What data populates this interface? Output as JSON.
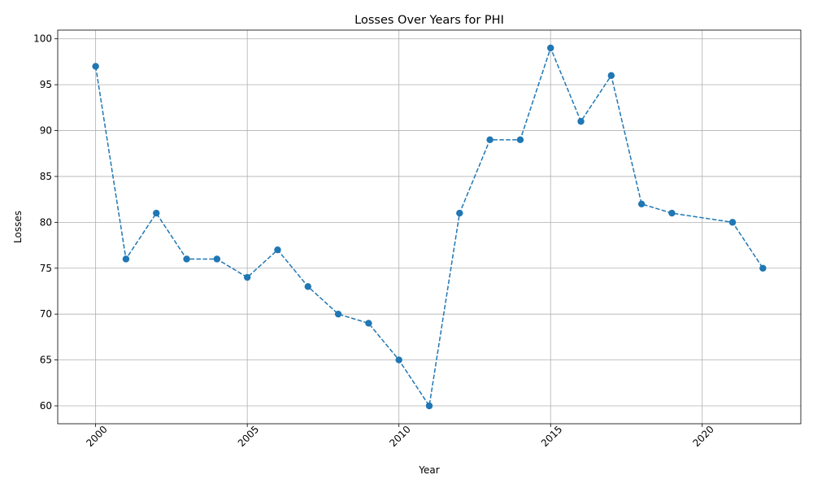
{
  "chart_data": {
    "type": "line",
    "title": "Losses Over Years for PHI",
    "xlabel": "Year",
    "ylabel": "Losses",
    "xlim": [
      1998.75,
      2023.25
    ],
    "ylim": [
      58.05,
      100.95
    ],
    "xticks": [
      2000,
      2005,
      2010,
      2015,
      2020
    ],
    "yticks": [
      60,
      65,
      70,
      75,
      80,
      85,
      90,
      95,
      100
    ],
    "grid": true,
    "line_style": "dashed",
    "marker": "circle",
    "color": "#1f77b4",
    "x": [
      2000,
      2001,
      2002,
      2003,
      2004,
      2005,
      2006,
      2007,
      2008,
      2009,
      2010,
      2011,
      2012,
      2013,
      2014,
      2015,
      2016,
      2017,
      2018,
      2019,
      2021,
      2022
    ],
    "y": [
      97,
      76,
      81,
      76,
      76,
      74,
      77,
      73,
      70,
      69,
      65,
      60,
      81,
      89,
      89,
      99,
      91,
      96,
      82,
      81,
      80,
      75
    ]
  }
}
